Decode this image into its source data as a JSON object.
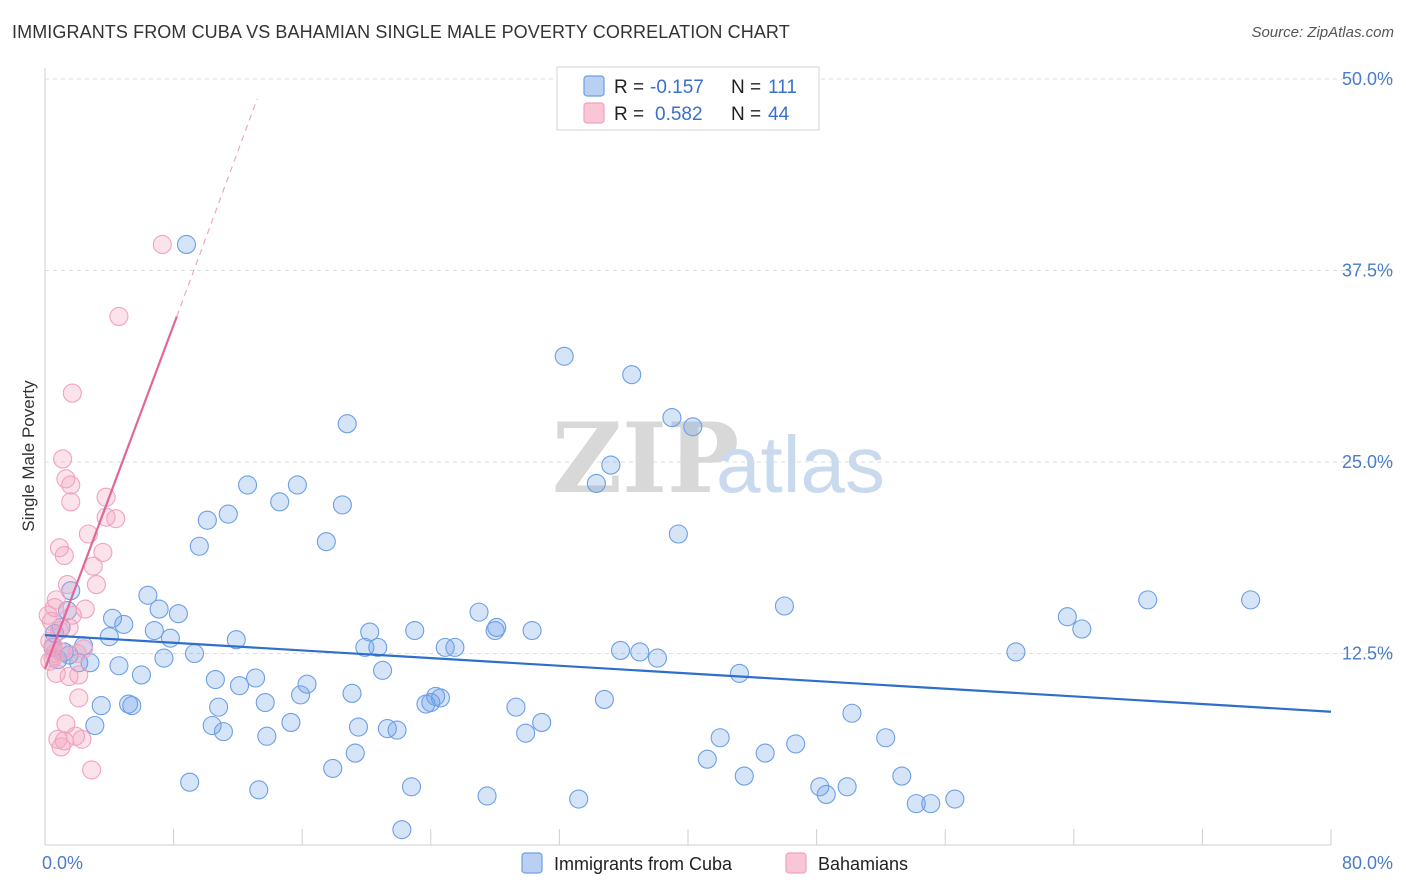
{
  "title": "IMMIGRANTS FROM CUBA VS BAHAMIAN SINGLE MALE POVERTY CORRELATION CHART",
  "source": "Source: ZipAtlas.com",
  "watermark": {
    "zip": "ZIP",
    "atlas": "atlas"
  },
  "colors": {
    "blue": "#6c9fe6",
    "blue_line": "#2f6fcc",
    "pink": "#f3a2bd",
    "pink_line": "#e0679a",
    "tick": "#4a7cc9"
  },
  "legend": {
    "rows": [
      {
        "r_label": "R =",
        "r_value": "-0.157",
        "n_label": "N =",
        "n_value": "111"
      },
      {
        "r_label": "R =",
        "r_value": "0.582",
        "n_label": "N =",
        "n_value": "44"
      }
    ]
  },
  "bottom_legend": [
    "Immigrants from Cuba",
    "Bahamians"
  ],
  "chart_data": {
    "type": "scatter",
    "title": "IMMIGRANTS FROM CUBA VS BAHAMIAN SINGLE MALE POVERTY CORRELATION CHART",
    "xlabel": "",
    "ylabel": "Single Male Poverty",
    "xlim": [
      0,
      80
    ],
    "ylim": [
      0,
      50
    ],
    "x_tick_labels": [
      "0.0%",
      "80.0%"
    ],
    "y_ticks": [
      12.5,
      25.0,
      37.5,
      50.0
    ],
    "y_tick_labels": [
      "12.5%",
      "25.0%",
      "37.5%",
      "50.0%"
    ],
    "grid": "horizontal dashed",
    "legend_position": "top-center",
    "series": [
      {
        "name": "Immigrants from Cuba",
        "color": "#6c9fe6",
        "trend": {
          "x": [
            0,
            80
          ],
          "y": [
            13.7,
            8.7
          ]
        },
        "points": [
          [
            0.5,
            12.9
          ],
          [
            0.6,
            13.8
          ],
          [
            0.8,
            12.1
          ],
          [
            1.0,
            14.2
          ],
          [
            1.2,
            12.6
          ],
          [
            1.4,
            15.3
          ],
          [
            1.5,
            12.4
          ],
          [
            1.6,
            16.6
          ],
          [
            2.1,
            11.9
          ],
          [
            2.4,
            13.0
          ],
          [
            2.8,
            11.9
          ],
          [
            3.1,
            7.8
          ],
          [
            3.5,
            9.1
          ],
          [
            4.0,
            13.6
          ],
          [
            4.2,
            14.8
          ],
          [
            4.6,
            11.7
          ],
          [
            4.9,
            14.4
          ],
          [
            5.2,
            9.2
          ],
          [
            5.4,
            9.1
          ],
          [
            6.0,
            11.1
          ],
          [
            6.4,
            16.3
          ],
          [
            6.8,
            14.0
          ],
          [
            7.1,
            15.4
          ],
          [
            7.4,
            12.2
          ],
          [
            7.8,
            13.5
          ],
          [
            8.3,
            15.1
          ],
          [
            8.8,
            39.2
          ],
          [
            9.0,
            4.1
          ],
          [
            9.3,
            12.5
          ],
          [
            9.6,
            19.5
          ],
          [
            10.1,
            21.2
          ],
          [
            10.4,
            7.8
          ],
          [
            10.6,
            10.8
          ],
          [
            10.8,
            9.0
          ],
          [
            11.1,
            7.4
          ],
          [
            11.4,
            21.6
          ],
          [
            11.9,
            13.4
          ],
          [
            12.1,
            10.4
          ],
          [
            12.6,
            23.5
          ],
          [
            13.1,
            10.9
          ],
          [
            13.3,
            3.6
          ],
          [
            13.7,
            9.3
          ],
          [
            13.8,
            7.1
          ],
          [
            14.6,
            22.4
          ],
          [
            15.3,
            8.0
          ],
          [
            15.7,
            23.5
          ],
          [
            15.9,
            9.8
          ],
          [
            16.3,
            10.5
          ],
          [
            17.5,
            19.8
          ],
          [
            17.9,
            5.0
          ],
          [
            18.5,
            22.2
          ],
          [
            18.8,
            27.5
          ],
          [
            19.1,
            9.9
          ],
          [
            19.3,
            6.0
          ],
          [
            19.5,
            7.7
          ],
          [
            19.9,
            12.9
          ],
          [
            20.2,
            13.9
          ],
          [
            20.7,
            12.9
          ],
          [
            21.0,
            11.4
          ],
          [
            21.3,
            7.6
          ],
          [
            21.9,
            7.5
          ],
          [
            22.2,
            1.0
          ],
          [
            22.8,
            3.8
          ],
          [
            23.0,
            14.0
          ],
          [
            23.7,
            9.2
          ],
          [
            24.0,
            9.3
          ],
          [
            24.3,
            9.7
          ],
          [
            24.6,
            9.6
          ],
          [
            24.9,
            12.9
          ],
          [
            25.5,
            12.9
          ],
          [
            27.0,
            15.2
          ],
          [
            27.5,
            3.2
          ],
          [
            28.0,
            14.0
          ],
          [
            28.1,
            14.2
          ],
          [
            29.3,
            9.0
          ],
          [
            29.9,
            7.3
          ],
          [
            30.3,
            14.0
          ],
          [
            30.9,
            8.0
          ],
          [
            32.3,
            31.9
          ],
          [
            33.2,
            3.0
          ],
          [
            34.3,
            23.6
          ],
          [
            34.8,
            9.5
          ],
          [
            35.2,
            24.8
          ],
          [
            35.8,
            12.7
          ],
          [
            36.5,
            30.7
          ],
          [
            37.0,
            12.6
          ],
          [
            38.1,
            12.2
          ],
          [
            39.0,
            27.9
          ],
          [
            39.4,
            20.3
          ],
          [
            40.3,
            27.3
          ],
          [
            41.2,
            5.6
          ],
          [
            42.0,
            7.0
          ],
          [
            43.2,
            11.2
          ],
          [
            43.5,
            4.5
          ],
          [
            44.8,
            6.0
          ],
          [
            46.0,
            15.6
          ],
          [
            46.7,
            6.6
          ],
          [
            48.2,
            3.8
          ],
          [
            48.6,
            3.3
          ],
          [
            49.9,
            3.8
          ],
          [
            50.2,
            8.6
          ],
          [
            52.3,
            7.0
          ],
          [
            53.3,
            4.5
          ],
          [
            54.2,
            2.7
          ],
          [
            55.1,
            2.7
          ],
          [
            56.6,
            3.0
          ],
          [
            60.4,
            12.6
          ],
          [
            63.6,
            14.9
          ],
          [
            64.5,
            14.1
          ],
          [
            68.6,
            16.0
          ],
          [
            75.0,
            16.0
          ]
        ]
      },
      {
        "name": "Bahamians",
        "color": "#f3a2bd",
        "trend": {
          "x": [
            0,
            8.2
          ],
          "y": [
            11.5,
            34.5
          ]
        },
        "trend_dashed": {
          "x": [
            8.2,
            13.2
          ],
          "y": [
            34.5,
            48.7
          ]
        },
        "points": [
          [
            0.2,
            15.0
          ],
          [
            0.3,
            13.3
          ],
          [
            0.3,
            12.0
          ],
          [
            0.4,
            14.6
          ],
          [
            0.5,
            13.0
          ],
          [
            0.5,
            12.2
          ],
          [
            0.6,
            12.5
          ],
          [
            0.6,
            15.5
          ],
          [
            0.7,
            11.2
          ],
          [
            0.7,
            16.0
          ],
          [
            0.8,
            6.9
          ],
          [
            0.9,
            19.4
          ],
          [
            0.9,
            14.0
          ],
          [
            1.0,
            12.6
          ],
          [
            1.0,
            6.4
          ],
          [
            1.1,
            25.2
          ],
          [
            1.2,
            18.9
          ],
          [
            1.2,
            6.8
          ],
          [
            1.3,
            7.9
          ],
          [
            1.4,
            17.0
          ],
          [
            1.5,
            11.0
          ],
          [
            1.5,
            14.2
          ],
          [
            1.6,
            22.4
          ],
          [
            1.6,
            23.5
          ],
          [
            1.7,
            15.0
          ],
          [
            1.7,
            29.5
          ],
          [
            1.9,
            7.1
          ],
          [
            2.0,
            12.5
          ],
          [
            2.1,
            9.6
          ],
          [
            2.1,
            11.1
          ],
          [
            2.3,
            6.9
          ],
          [
            2.4,
            12.8
          ],
          [
            2.5,
            15.4
          ],
          [
            2.7,
            20.3
          ],
          [
            2.9,
            4.9
          ],
          [
            3.0,
            18.2
          ],
          [
            3.2,
            17.0
          ],
          [
            3.6,
            19.1
          ],
          [
            3.8,
            21.4
          ],
          [
            3.8,
            22.7
          ],
          [
            4.4,
            21.3
          ],
          [
            4.6,
            34.5
          ],
          [
            7.3,
            39.2
          ],
          [
            1.3,
            23.9
          ]
        ]
      }
    ]
  }
}
